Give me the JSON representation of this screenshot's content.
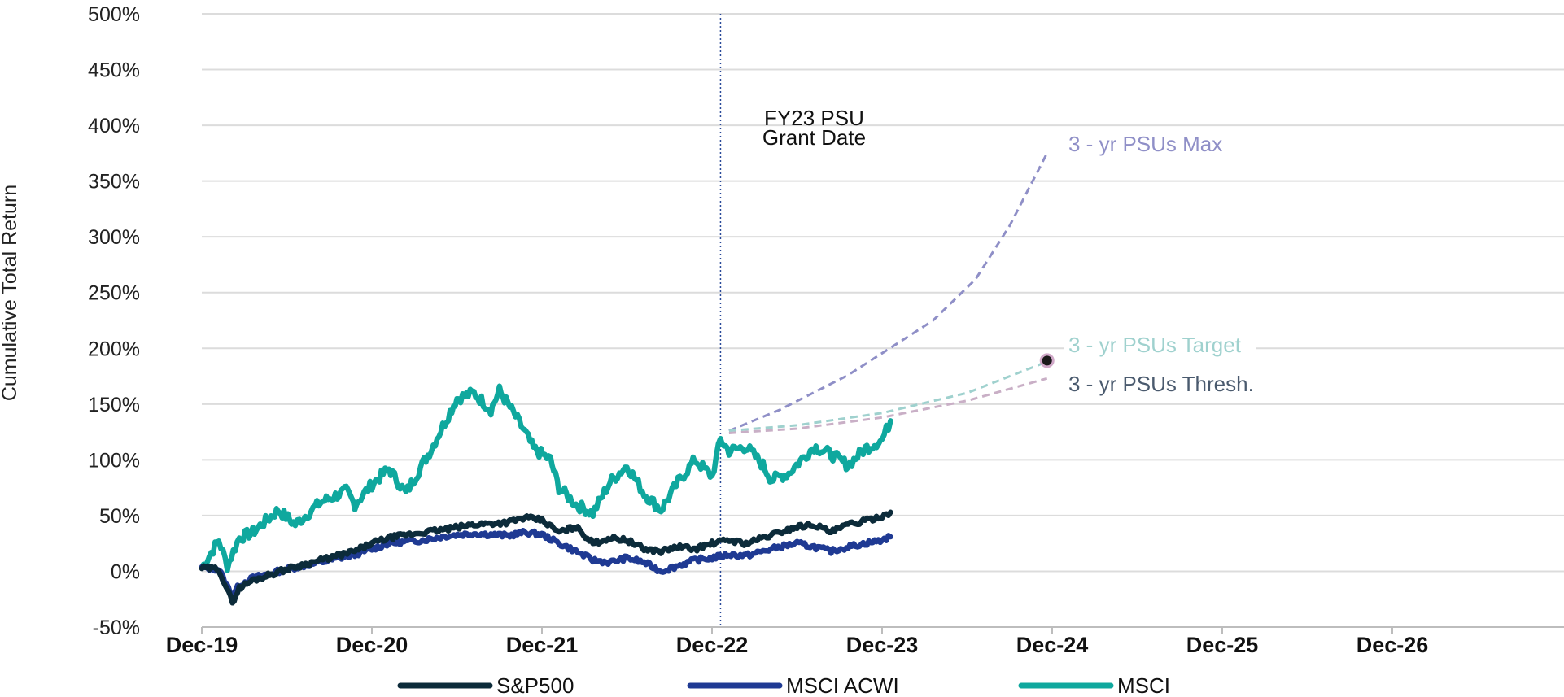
{
  "chart_data": {
    "type": "line",
    "title": "",
    "ylabel": "Cumulative Total Return",
    "xlabel": "",
    "ylim": [
      -50,
      500
    ],
    "ytick_step": 50,
    "y_tick_labels": [
      "-50%",
      "0%",
      "50%",
      "100%",
      "150%",
      "200%",
      "250%",
      "300%",
      "350%",
      "400%",
      "450%",
      "500%"
    ],
    "xlim": [
      0,
      8.3
    ],
    "x_tick_positions": [
      0,
      1,
      2,
      3,
      4,
      5,
      6,
      7
    ],
    "x_tick_labels": [
      "Dec-19",
      "Dec-20",
      "Dec-21",
      "Dec-22",
      "Dec-23",
      "Dec-24",
      "Dec-25",
      "Dec-26"
    ],
    "grid": true,
    "legend_position": "bottom",
    "vline": {
      "x": 3.05,
      "label_line1": "FY23 PSU",
      "label_line2": "Grant Date"
    },
    "series": [
      {
        "name": "MSCI",
        "color": "#0fa89e",
        "x": [
          0,
          0.1,
          0.15,
          0.22,
          0.3,
          0.45,
          0.55,
          0.7,
          0.85,
          0.9,
          1.0,
          1.1,
          1.2,
          1.35,
          1.45,
          1.5,
          1.6,
          1.7,
          1.75,
          1.8,
          1.9,
          1.95,
          2.05,
          2.1,
          2.2,
          2.3,
          2.4,
          2.5,
          2.6,
          2.7,
          2.8,
          2.9,
          3.0,
          3.05,
          3.1,
          3.2,
          3.3,
          3.35,
          3.45,
          3.6,
          3.7,
          3.8,
          3.9,
          4.0,
          4.05
        ],
        "values": [
          3,
          28,
          5,
          30,
          35,
          55,
          42,
          62,
          72,
          60,
          78,
          92,
          70,
          110,
          140,
          155,
          160,
          145,
          162,
          150,
          125,
          110,
          100,
          75,
          60,
          52,
          80,
          95,
          70,
          55,
          80,
          100,
          85,
          118,
          108,
          112,
          95,
          82,
          88,
          112,
          105,
          95,
          110,
          118,
          135
        ]
      },
      {
        "name": "S&P500",
        "color": "#0c2b3a",
        "x": [
          0,
          0.1,
          0.18,
          0.22,
          0.3,
          0.5,
          0.7,
          0.9,
          1.0,
          1.1,
          1.3,
          1.45,
          1.6,
          1.8,
          1.9,
          2.0,
          2.1,
          2.2,
          2.3,
          2.4,
          2.5,
          2.6,
          2.7,
          2.8,
          2.9,
          3.0,
          3.1,
          3.2,
          3.3,
          3.4,
          3.5,
          3.6,
          3.7,
          3.8,
          3.9,
          4.0,
          4.05
        ],
        "values": [
          3,
          2,
          -28,
          -15,
          -8,
          2,
          10,
          18,
          25,
          30,
          35,
          38,
          42,
          44,
          48,
          46,
          35,
          40,
          25,
          30,
          28,
          20,
          18,
          22,
          20,
          25,
          28,
          25,
          30,
          35,
          40,
          42,
          35,
          42,
          45,
          50,
          53
        ]
      },
      {
        "name": "MSCI ACWI",
        "color": "#1f3a93",
        "x": [
          0,
          0.1,
          0.18,
          0.22,
          0.3,
          0.5,
          0.7,
          0.9,
          1.0,
          1.1,
          1.3,
          1.45,
          1.6,
          1.8,
          1.9,
          2.0,
          2.1,
          2.2,
          2.3,
          2.4,
          2.5,
          2.6,
          2.7,
          2.8,
          2.9,
          3.0,
          3.1,
          3.2,
          3.3,
          3.4,
          3.5,
          3.6,
          3.7,
          3.8,
          3.9,
          4.0,
          4.05
        ],
        "values": [
          3,
          2,
          -22,
          -12,
          -6,
          2,
          8,
          15,
          20,
          25,
          28,
          32,
          34,
          32,
          35,
          33,
          25,
          18,
          10,
          8,
          12,
          8,
          0,
          5,
          10,
          12,
          15,
          14,
          18,
          22,
          25,
          22,
          18,
          22,
          25,
          28,
          31
        ]
      }
    ],
    "projections": [
      {
        "name": "3-yr PSUs Max",
        "label": "3 - yr PSUs Max",
        "color": "#8f8fc7",
        "x": [
          3.1,
          3.4,
          3.8,
          4.3,
          4.55,
          4.75,
          4.97
        ],
        "values": [
          126,
          145,
          176,
          225,
          262,
          310,
          375
        ]
      },
      {
        "name": "3-yr PSUs Target",
        "label": "3 - yr PSUs Target",
        "color": "#9fd1ce",
        "x": [
          3.1,
          3.5,
          4.0,
          4.5,
          4.97
        ],
        "values": [
          126,
          131,
          142,
          160,
          188
        ]
      },
      {
        "name": "3-yr PSUs Thresh.",
        "label": "3 - yr PSUs Thresh.",
        "color": "#c9afc6",
        "x": [
          3.1,
          3.5,
          4.0,
          4.5,
          4.97
        ],
        "values": [
          124,
          128,
          138,
          153,
          173
        ]
      }
    ],
    "marker": {
      "x": 4.97,
      "value": 189
    },
    "legend": [
      {
        "name": "S&P500",
        "color": "#0c2b3a"
      },
      {
        "name": "MSCI ACWI",
        "color": "#1f3a93"
      },
      {
        "name": "MSCI",
        "color": "#0fa89e"
      }
    ]
  }
}
